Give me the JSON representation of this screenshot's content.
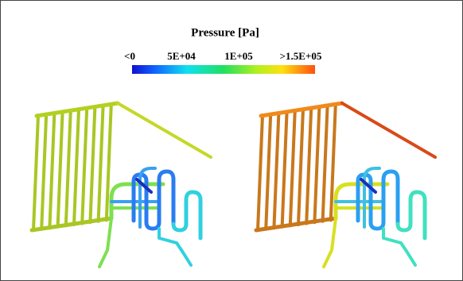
{
  "legend": {
    "title": "Pressure [Pa]",
    "labels": [
      "<0",
      "5E+04",
      "1E+05",
      ">1.5E+05"
    ]
  }
}
